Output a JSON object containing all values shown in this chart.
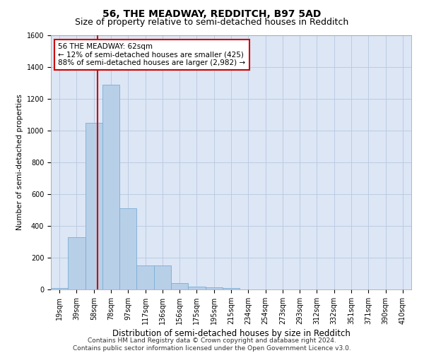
{
  "title": "56, THE MEADWAY, REDDITCH, B97 5AD",
  "subtitle": "Size of property relative to semi-detached houses in Redditch",
  "xlabel": "Distribution of semi-detached houses by size in Redditch",
  "ylabel": "Number of semi-detached properties",
  "categories": [
    "19sqm",
    "39sqm",
    "58sqm",
    "78sqm",
    "97sqm",
    "117sqm",
    "136sqm",
    "156sqm",
    "175sqm",
    "195sqm",
    "215sqm",
    "234sqm",
    "254sqm",
    "273sqm",
    "293sqm",
    "312sqm",
    "332sqm",
    "351sqm",
    "371sqm",
    "390sqm",
    "410sqm"
  ],
  "values": [
    10,
    330,
    1050,
    1290,
    510,
    150,
    150,
    40,
    20,
    15,
    10,
    0,
    0,
    0,
    0,
    0,
    0,
    0,
    0,
    0,
    0
  ],
  "bar_color": "#b8cfe8",
  "bar_edge_color": "#7aadd4",
  "property_label": "56 THE MEADWAY: 62sqm",
  "smaller_pct": 12,
  "smaller_count": 425,
  "larger_pct": 88,
  "larger_count": 2982,
  "vline_x_index": 2.2,
  "annotation_box_color": "#ffffff",
  "annotation_box_edge_color": "#cc0000",
  "vline_color": "#cc0000",
  "ylim": [
    0,
    1600
  ],
  "yticks": [
    0,
    200,
    400,
    600,
    800,
    1000,
    1200,
    1400,
    1600
  ],
  "footer_line1": "Contains HM Land Registry data © Crown copyright and database right 2024.",
  "footer_line2": "Contains public sector information licensed under the Open Government Licence v3.0.",
  "background_color": "#ffffff",
  "plot_bg_color": "#dce6f5",
  "grid_color": "#b8c8e0",
  "title_fontsize": 10,
  "subtitle_fontsize": 9,
  "xlabel_fontsize": 8.5,
  "ylabel_fontsize": 7.5,
  "tick_fontsize": 7,
  "footer_fontsize": 6.5,
  "annot_fontsize": 7.5
}
